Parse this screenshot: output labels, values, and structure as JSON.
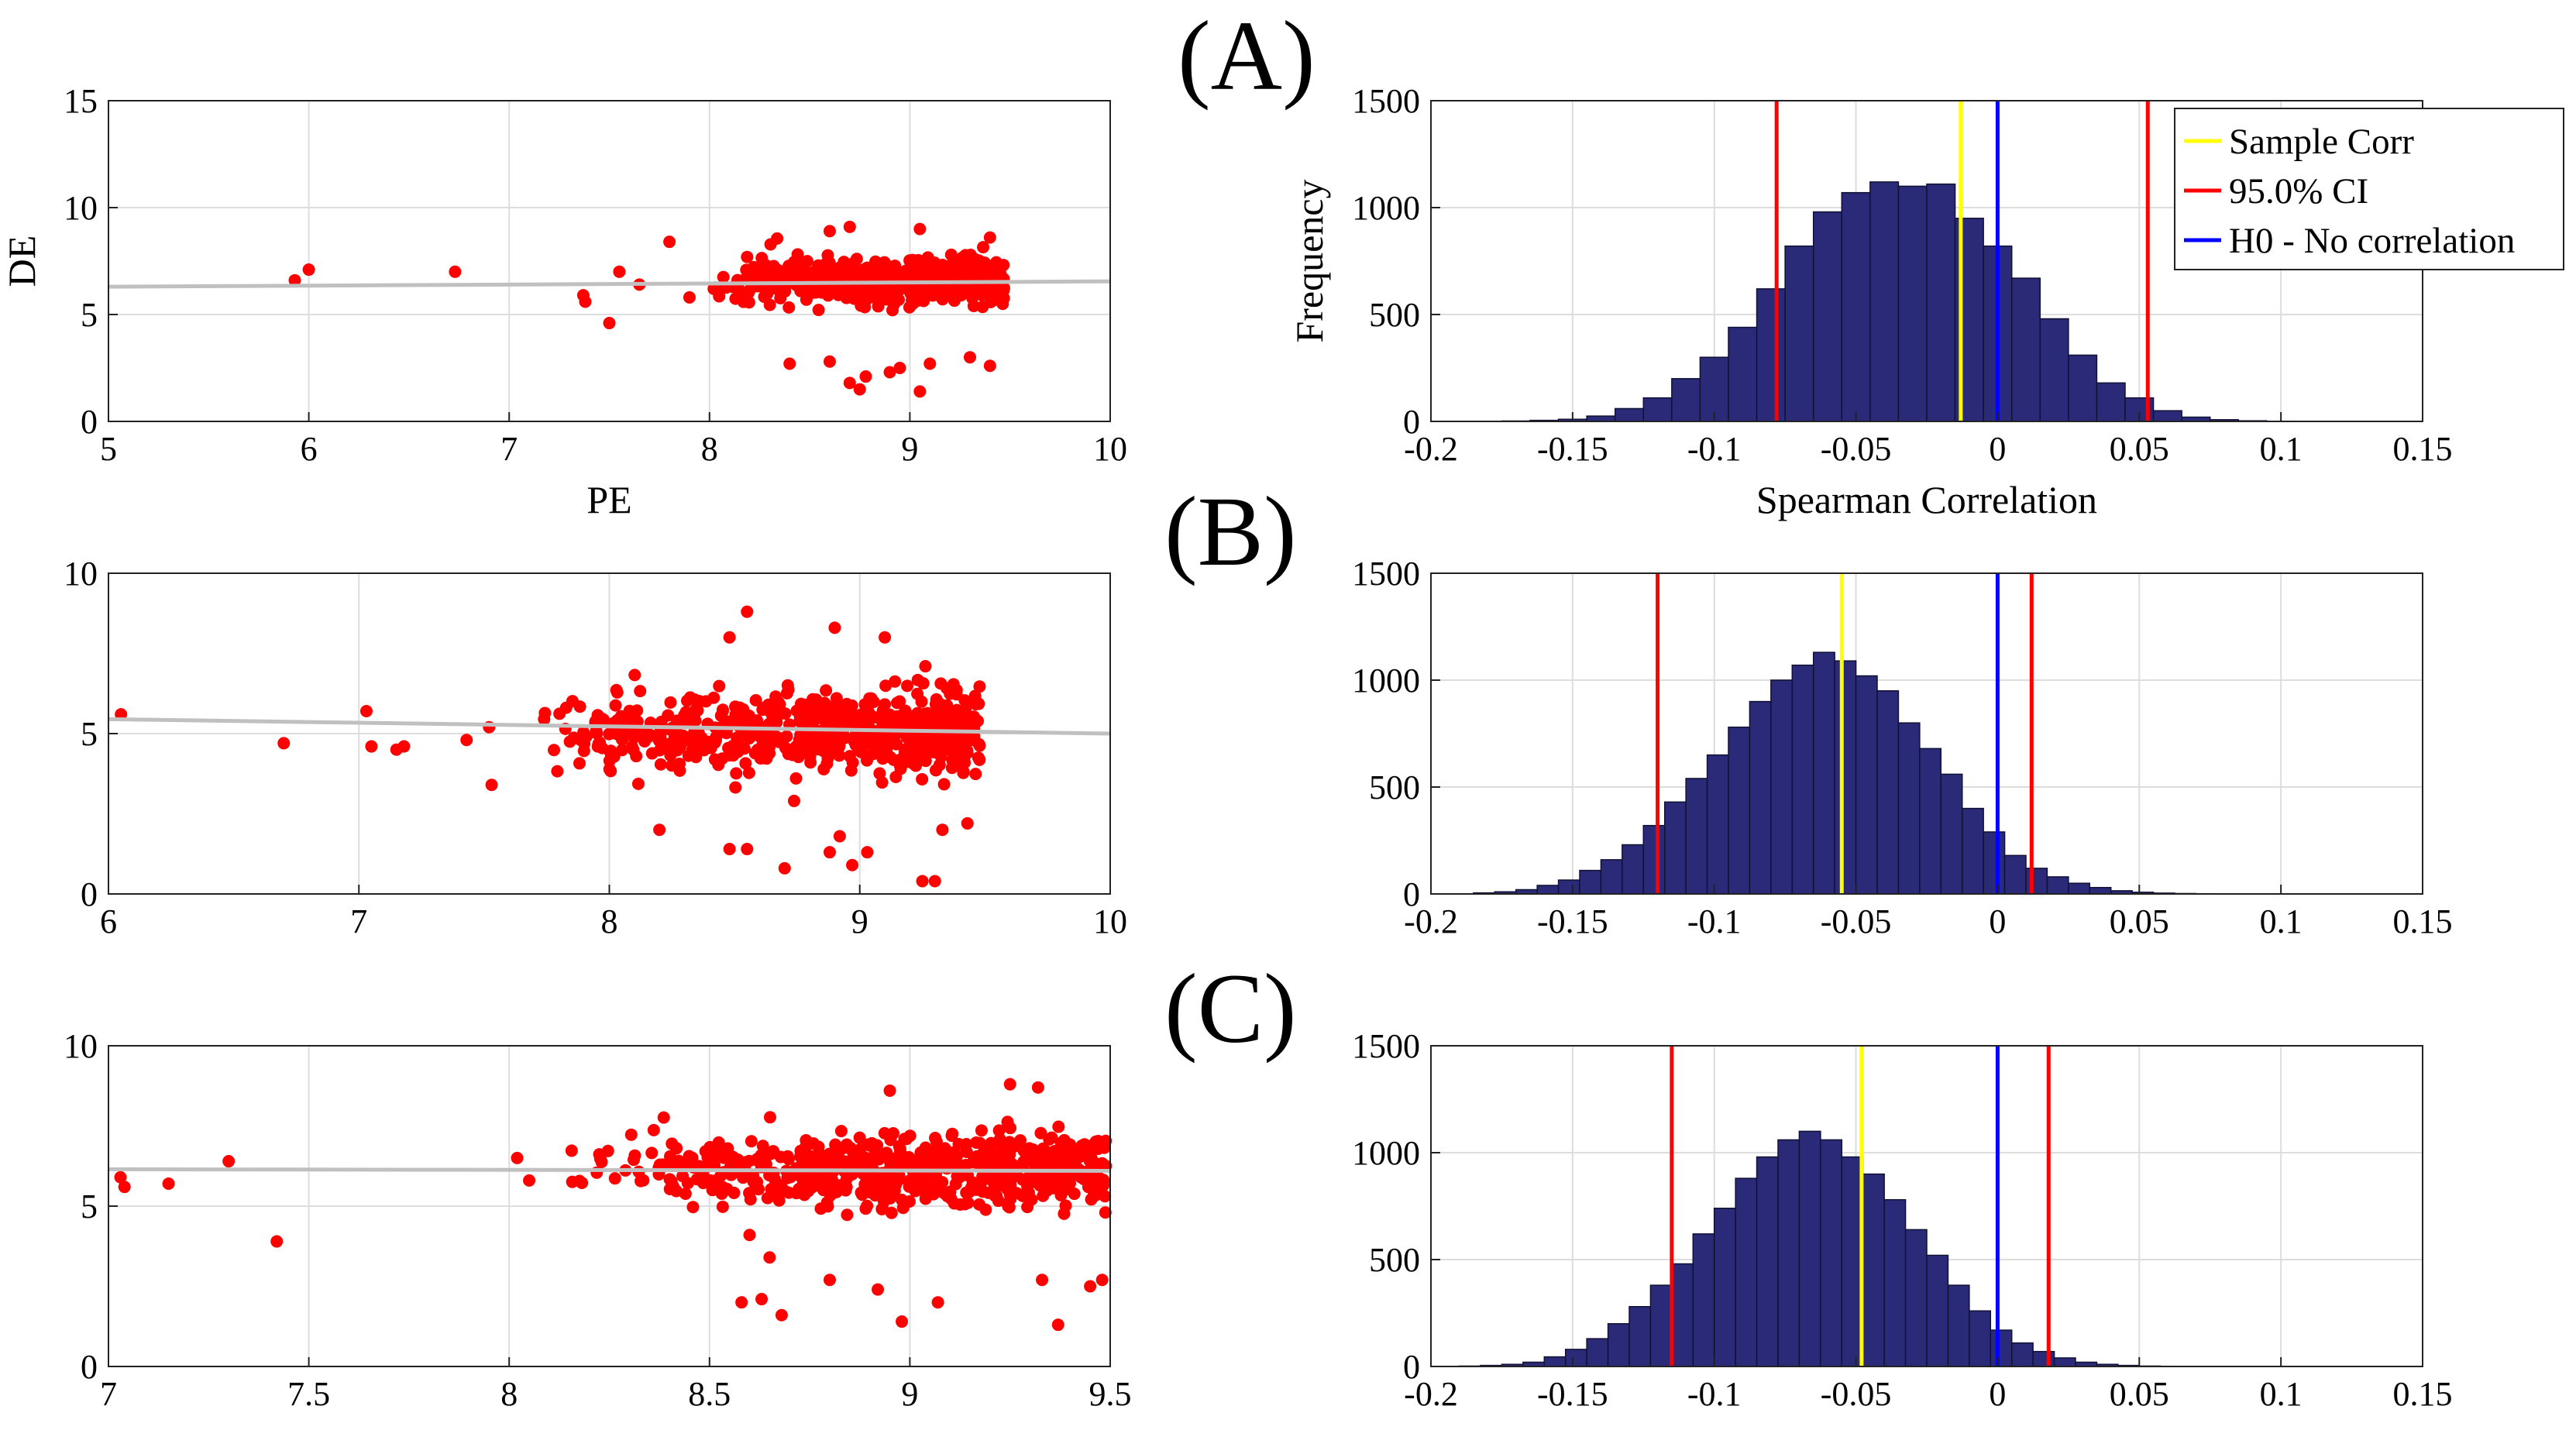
{
  "panel_labels": [
    "(A)",
    "(B)",
    "(C)"
  ],
  "chart_data": [
    {
      "id": "A-scatter",
      "type": "scatter",
      "xlabel": "PE",
      "ylabel": "DE",
      "xlim": [
        5,
        10
      ],
      "ylim": [
        0,
        15
      ],
      "xticks": [
        5,
        6,
        7,
        8,
        9,
        10
      ],
      "yticks": [
        0,
        5,
        10,
        15
      ],
      "fit_line": {
        "x": [
          5,
          10
        ],
        "y": [
          6.3,
          6.55
        ]
      },
      "outliers": [
        [
          5.93,
          6.6
        ],
        [
          6.0,
          7.1
        ],
        [
          6.73,
          7.0
        ],
        [
          7.37,
          5.9
        ],
        [
          7.38,
          5.6
        ],
        [
          7.5,
          4.6
        ],
        [
          7.55,
          7.0
        ],
        [
          7.65,
          6.4
        ],
        [
          7.8,
          8.4
        ],
        [
          7.9,
          5.8
        ],
        [
          8.4,
          2.7
        ],
        [
          8.6,
          2.8
        ],
        [
          8.7,
          1.8
        ],
        [
          8.75,
          1.5
        ],
        [
          8.78,
          2.1
        ],
        [
          8.9,
          2.3
        ],
        [
          8.95,
          2.5
        ],
        [
          9.05,
          1.4
        ],
        [
          9.1,
          2.7
        ],
        [
          9.3,
          3.0
        ],
        [
          9.4,
          2.6
        ],
        [
          8.6,
          8.9
        ],
        [
          8.7,
          9.1
        ],
        [
          9.05,
          9.0
        ],
        [
          9.4,
          8.6
        ]
      ],
      "cloud": {
        "x_range": [
          8.0,
          9.47
        ],
        "center": 6.6,
        "spread": 1.0,
        "count": 600,
        "seed": 11
      }
    },
    {
      "id": "A-hist",
      "type": "histogram",
      "xlabel": "Spearman Correlation",
      "ylabel": "Frequency",
      "xlim": [
        -0.2,
        0.15
      ],
      "ylim": [
        0,
        1500
      ],
      "xticks": [
        -0.2,
        -0.15,
        -0.1,
        -0.05,
        0,
        0.05,
        0.1,
        0.15
      ],
      "yticks": [
        0,
        500,
        1000,
        1500
      ],
      "bin_start": -0.185,
      "bin_width": 0.01,
      "counts": [
        0,
        2,
        5,
        10,
        25,
        60,
        110,
        200,
        300,
        440,
        620,
        820,
        980,
        1070,
        1120,
        1100,
        1110,
        950,
        820,
        670,
        480,
        310,
        180,
        110,
        50,
        20,
        8,
        3,
        1,
        0
      ],
      "lines": {
        "sample_corr": -0.013,
        "ci_low": -0.078,
        "ci_high": 0.053,
        "h0": 0
      },
      "legend": [
        "Sample Corr",
        "95.0% CI",
        "H0 - No correlation"
      ]
    },
    {
      "id": "B-scatter",
      "type": "scatter",
      "xlabel": "",
      "ylabel": "",
      "xlim": [
        6,
        10
      ],
      "ylim": [
        0,
        10
      ],
      "xticks": [
        6,
        7,
        8,
        9,
        10
      ],
      "yticks": [
        0,
        5,
        10
      ],
      "fit_line": {
        "x": [
          6,
          10
        ],
        "y": [
          5.45,
          5.0
        ]
      },
      "outliers": [
        [
          6.05,
          5.6
        ],
        [
          6.7,
          4.7
        ],
        [
          7.03,
          5.7
        ],
        [
          7.05,
          4.6
        ],
        [
          7.15,
          4.5
        ],
        [
          7.18,
          4.6
        ],
        [
          7.43,
          4.8
        ],
        [
          7.52,
          5.2
        ],
        [
          7.53,
          3.4
        ],
        [
          8.2,
          2.0
        ],
        [
          8.48,
          1.4
        ],
        [
          8.55,
          1.4
        ],
        [
          8.7,
          0.8
        ],
        [
          8.88,
          1.3
        ],
        [
          8.92,
          1.8
        ],
        [
          8.97,
          0.9
        ],
        [
          9.03,
          1.3
        ],
        [
          9.25,
          0.4
        ],
        [
          9.3,
          0.4
        ],
        [
          9.33,
          2.0
        ],
        [
          9.43,
          2.2
        ],
        [
          8.55,
          8.8
        ],
        [
          8.9,
          8.3
        ],
        [
          8.48,
          8.0
        ],
        [
          9.1,
          8.0
        ]
      ],
      "cloud": {
        "x_range": [
          7.65,
          9.48
        ],
        "center": 5.1,
        "spread": 1.1,
        "count": 650,
        "seed": 23
      }
    },
    {
      "id": "B-hist",
      "type": "histogram",
      "xlabel": "",
      "ylabel": "",
      "xlim": [
        -0.2,
        0.15
      ],
      "ylim": [
        0,
        1500
      ],
      "xticks": [
        -0.2,
        -0.15,
        -0.1,
        -0.05,
        0,
        0.05,
        0.1,
        0.15
      ],
      "yticks": [
        0,
        500,
        1000,
        1500
      ],
      "bin_start": -0.185,
      "bin_width": 0.0075,
      "counts": [
        5,
        10,
        20,
        40,
        65,
        110,
        160,
        230,
        320,
        430,
        540,
        650,
        780,
        900,
        1000,
        1070,
        1130,
        1090,
        1020,
        950,
        800,
        680,
        560,
        400,
        290,
        180,
        120,
        80,
        50,
        30,
        15,
        8,
        4,
        2,
        1
      ],
      "lines": {
        "sample_corr": -0.055,
        "ci_low": -0.12,
        "ci_high": 0.012,
        "h0": 0
      },
      "legend": []
    },
    {
      "id": "C-scatter",
      "type": "scatter",
      "xlabel": "",
      "ylabel": "",
      "xlim": [
        7,
        9.5
      ],
      "ylim": [
        0,
        10
      ],
      "xticks": [
        7,
        7.5,
        8,
        8.5,
        9,
        9.5
      ],
      "yticks": [
        0,
        5,
        10
      ],
      "fit_line": {
        "x": [
          7,
          9.5
        ],
        "y": [
          6.15,
          6.1
        ]
      },
      "outliers": [
        [
          7.03,
          5.9
        ],
        [
          7.04,
          5.6
        ],
        [
          7.15,
          5.7
        ],
        [
          7.3,
          6.4
        ],
        [
          7.42,
          3.9
        ],
        [
          8.02,
          6.5
        ],
        [
          8.05,
          5.8
        ],
        [
          8.58,
          2.0
        ],
        [
          8.63,
          2.1
        ],
        [
          8.68,
          1.6
        ],
        [
          8.8,
          2.7
        ],
        [
          8.92,
          2.4
        ],
        [
          8.98,
          1.4
        ],
        [
          9.07,
          2.0
        ],
        [
          9.33,
          2.7
        ],
        [
          9.37,
          1.3
        ],
        [
          9.45,
          2.5
        ],
        [
          9.48,
          2.7
        ],
        [
          8.6,
          4.1
        ],
        [
          8.65,
          3.4
        ],
        [
          8.95,
          8.6
        ],
        [
          9.25,
          8.8
        ],
        [
          9.32,
          8.7
        ]
      ],
      "cloud": {
        "x_range": [
          8.1,
          9.49
        ],
        "center": 6.1,
        "spread": 1.0,
        "count": 650,
        "seed": 37
      }
    },
    {
      "id": "C-hist",
      "type": "histogram",
      "xlabel": "",
      "ylabel": "",
      "xlim": [
        -0.2,
        0.15
      ],
      "ylim": [
        0,
        1500
      ],
      "xticks": [
        -0.2,
        -0.15,
        -0.1,
        -0.05,
        0,
        0.05,
        0.1,
        0.15
      ],
      "yticks": [
        0,
        500,
        1000,
        1500
      ],
      "bin_start": -0.19,
      "bin_width": 0.0075,
      "counts": [
        2,
        5,
        10,
        20,
        45,
        80,
        130,
        200,
        280,
        380,
        480,
        620,
        740,
        880,
        980,
        1060,
        1100,
        1060,
        980,
        900,
        780,
        640,
        520,
        380,
        260,
        170,
        110,
        70,
        40,
        20,
        10,
        5,
        2,
        1,
        0,
        0
      ],
      "lines": {
        "sample_corr": -0.048,
        "ci_low": -0.115,
        "ci_high": 0.018,
        "h0": 0
      },
      "legend": []
    }
  ],
  "colors": {
    "scatter": "#ff0000",
    "fit": "#c0c0c0",
    "bar_fill": "#2a2a78",
    "bar_edge": "#111133",
    "sample_corr": "#ffff00",
    "ci": "#ff0000",
    "h0": "#0000ff",
    "grid": "#dddddd"
  }
}
